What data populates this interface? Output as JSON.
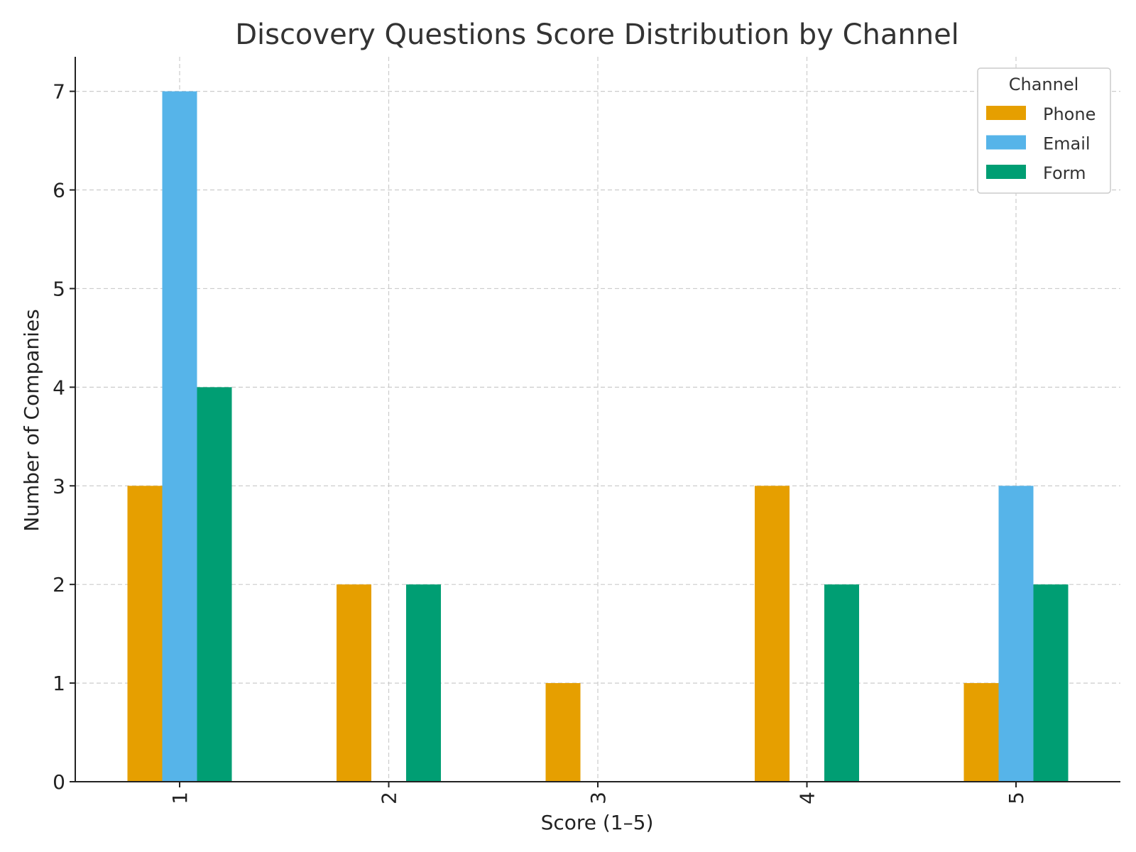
{
  "chart_data": {
    "type": "bar",
    "title": "Discovery Questions Score Distribution by Channel",
    "xlabel": "Score (1–5)",
    "ylabel": "Number of Companies",
    "categories": [
      "1",
      "2",
      "3",
      "4",
      "5"
    ],
    "series": [
      {
        "name": "Phone",
        "color": "#E69F00",
        "values": [
          3,
          2,
          1,
          3,
          1
        ]
      },
      {
        "name": "Email",
        "color": "#56B4E9",
        "values": [
          7,
          0,
          0,
          0,
          3
        ]
      },
      {
        "name": "Form",
        "color": "#009E73",
        "values": [
          4,
          2,
          0,
          2,
          2
        ]
      }
    ],
    "ylim": [
      0,
      7.35
    ],
    "yticks": [
      "0",
      "1",
      "2",
      "3",
      "4",
      "5",
      "6",
      "7"
    ],
    "grid": true,
    "legend": {
      "title": "Channel",
      "position": "top-right"
    }
  }
}
